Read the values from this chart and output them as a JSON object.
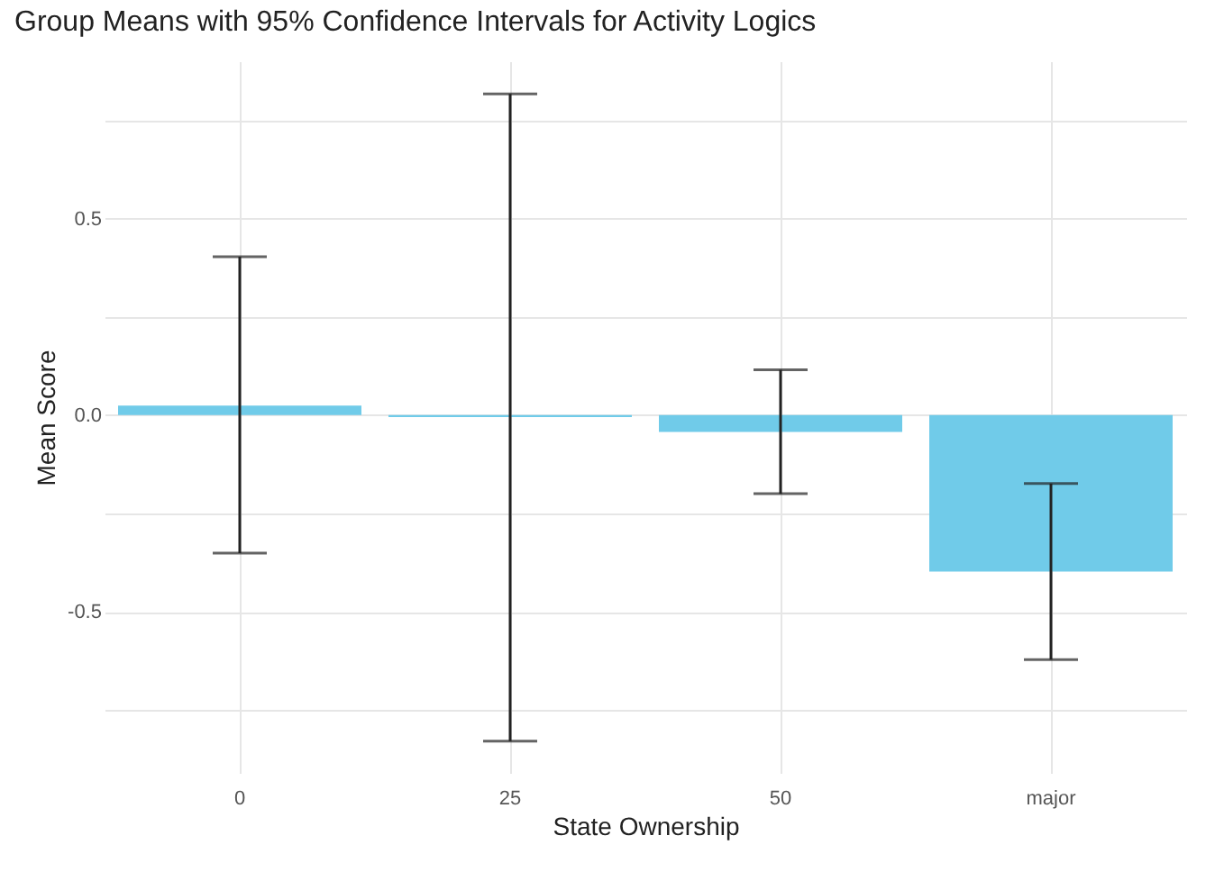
{
  "chart_data": {
    "type": "bar",
    "title": "Group Means with 95% Confidence Intervals for Activity Logics",
    "xlabel": "State Ownership",
    "ylabel": "Mean Score",
    "categories": [
      "0",
      "25",
      "50",
      "major"
    ],
    "values": [
      0.024,
      -0.005,
      -0.043,
      -0.398
    ],
    "errors": [
      [
        -0.351,
        0.403
      ],
      [
        -0.829,
        0.817
      ],
      [
        -0.2,
        0.115
      ],
      [
        -0.622,
        -0.174
      ]
    ],
    "color": "#70cbe9",
    "ylim": [
      -0.91,
      0.9
    ],
    "yticks": [
      {
        "value": -0.75,
        "label": null
      },
      {
        "value": -0.5,
        "label": "-0.5"
      },
      {
        "value": -0.25,
        "label": null
      },
      {
        "value": 0,
        "label": "0.0"
      },
      {
        "value": 0.25,
        "label": null
      },
      {
        "value": 0.5,
        "label": "0.5"
      },
      {
        "value": 0.75,
        "label": null
      }
    ],
    "grid": true
  }
}
